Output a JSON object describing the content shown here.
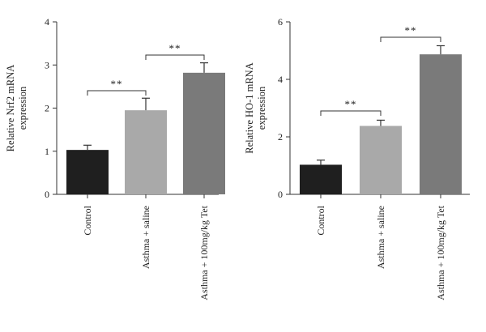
{
  "chart_data": [
    {
      "type": "bar",
      "categories": [
        "Control",
        "Asthma + saline",
        "Asthma + 100mg/kg Tet"
      ],
      "values": [
        1.03,
        1.95,
        2.82
      ],
      "errors": [
        0.11,
        0.28,
        0.23
      ],
      "ylabel_lines": [
        "Relative Nrf2 mRNA",
        "expression"
      ],
      "ylim": [
        0,
        4
      ],
      "yticks": [
        0,
        1,
        2,
        3,
        4
      ],
      "colors": [
        "#1f1f1f",
        "#a9a9a9",
        "#7a7a7a"
      ],
      "significance": [
        {
          "from": 0,
          "to": 1,
          "label": "**"
        },
        {
          "from": 1,
          "to": 2,
          "label": "**"
        }
      ]
    },
    {
      "type": "bar",
      "categories": [
        "Control",
        "Asthma + saline",
        "Asthma + 100mg/kg Tet"
      ],
      "values": [
        1.03,
        2.38,
        4.87
      ],
      "errors": [
        0.16,
        0.2,
        0.3
      ],
      "ylabel_lines": [
        "Relative HO-1 mRNA",
        "expression"
      ],
      "ylim": [
        0,
        6
      ],
      "yticks": [
        0,
        2,
        4,
        6
      ],
      "colors": [
        "#1f1f1f",
        "#a9a9a9",
        "#7a7a7a"
      ],
      "significance": [
        {
          "from": 0,
          "to": 1,
          "label": "**"
        },
        {
          "from": 1,
          "to": 2,
          "label": "**"
        }
      ]
    }
  ]
}
